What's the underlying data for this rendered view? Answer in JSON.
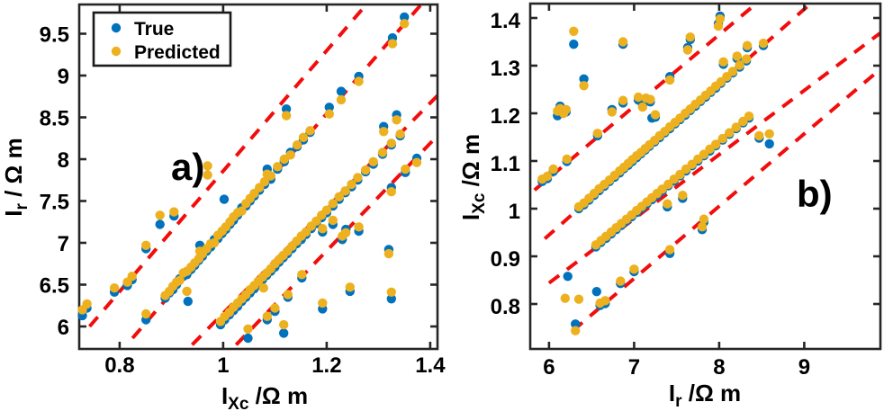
{
  "colors": {
    "true_marker": "#0072BD",
    "predicted_marker": "#EDB120",
    "ref_line": "#F20D0D",
    "axis": "#262626",
    "text": "#000000",
    "background": "#FFFFFF"
  },
  "legend": {
    "position": "top-left-inside-panel-a",
    "items": [
      {
        "label": "True",
        "color_key": "true_marker"
      },
      {
        "label": "Predicted",
        "color_key": "predicted_marker"
      }
    ]
  },
  "chart_data": [
    {
      "id": "a",
      "type": "scatter",
      "panel_label": "a)",
      "xlabel": {
        "pre": "I",
        "sub": "Xc",
        "post": " /Ω m"
      },
      "ylabel": {
        "pre": "I",
        "sub": "r",
        "post": " / Ω m"
      },
      "xlim": [
        0.722,
        1.414
      ],
      "ylim": [
        5.731,
        9.849
      ],
      "xticks": [
        0.8,
        1.0,
        1.2,
        1.4
      ],
      "xtick_labels": [
        "0.8",
        "1",
        "1.2",
        "1.4"
      ],
      "yticks": [
        6,
        6.5,
        7,
        7.5,
        8,
        8.5,
        9,
        9.5
      ],
      "ytick_labels": [
        "6",
        "6.5",
        "7",
        "7.5",
        "8",
        "8.5",
        "9",
        "9.5"
      ],
      "grid": false,
      "show_legend": true,
      "ref_lines": [
        [
          0.742,
          6.0,
          1.278,
          9.86
        ],
        [
          0.825,
          5.86,
          1.384,
          9.86
        ],
        [
          0.94,
          5.78,
          1.414,
          8.76
        ],
        [
          1.025,
          5.78,
          1.414,
          8.28
        ]
      ],
      "pairs": [
        [
          0.728,
          6.13,
          6.2
        ],
        [
          0.737,
          6.22,
          6.27
        ],
        [
          0.79,
          6.41,
          6.46
        ],
        [
          0.815,
          6.49,
          6.53
        ],
        [
          0.824,
          6.56,
          6.6
        ],
        [
          0.851,
          6.93,
          6.97
        ],
        [
          0.878,
          7.22,
          7.33
        ],
        [
          0.905,
          7.32,
          7.37
        ],
        [
          0.851,
          6.08,
          6.15
        ],
        [
          0.888,
          6.34,
          6.37
        ],
        [
          0.896,
          6.4,
          6.42
        ],
        [
          0.903,
          6.44,
          6.48
        ],
        [
          0.91,
          6.5,
          6.53
        ],
        [
          0.916,
          6.57,
          6.55
        ],
        [
          0.923,
          6.6,
          6.64
        ],
        [
          0.93,
          6.62,
          6.66
        ],
        [
          0.938,
          6.68,
          6.71
        ],
        [
          0.945,
          6.73,
          6.76
        ],
        [
          0.953,
          6.79,
          6.81
        ],
        [
          0.96,
          6.84,
          6.87
        ],
        [
          0.968,
          6.9,
          6.93
        ],
        [
          0.976,
          6.95,
          6.99
        ],
        [
          0.983,
          7.04,
          7.0
        ],
        [
          0.99,
          7.05,
          7.09
        ],
        [
          0.998,
          7.11,
          7.14
        ],
        [
          1.005,
          7.16,
          7.19
        ],
        [
          1.013,
          7.22,
          7.25
        ],
        [
          1.02,
          7.27,
          7.31
        ],
        [
          1.028,
          7.33,
          7.36
        ],
        [
          1.036,
          7.42,
          7.38
        ],
        [
          1.044,
          7.44,
          7.47
        ],
        [
          1.052,
          7.5,
          7.53
        ],
        [
          1.06,
          7.56,
          7.59
        ],
        [
          1.07,
          7.63,
          7.66
        ],
        [
          1.08,
          7.7,
          7.73
        ],
        [
          1.092,
          7.76,
          7.8
        ],
        [
          1.105,
          7.88,
          7.91
        ],
        [
          1.118,
          7.97,
          8.0
        ],
        [
          1.13,
          8.08,
          8.05
        ],
        [
          1.143,
          8.15,
          8.17
        ],
        [
          1.155,
          8.23,
          8.26
        ],
        [
          1.168,
          8.32,
          8.34
        ],
        [
          0.995,
          6.02,
          6.06
        ],
        [
          1.003,
          6.08,
          6.12
        ],
        [
          1.012,
          6.14,
          6.17
        ],
        [
          1.02,
          6.19,
          6.23
        ],
        [
          1.028,
          6.24,
          6.28
        ],
        [
          1.036,
          6.3,
          6.33
        ],
        [
          1.044,
          6.35,
          6.38
        ],
        [
          1.052,
          6.4,
          6.44
        ],
        [
          1.06,
          6.45,
          6.49
        ],
        [
          1.068,
          6.5,
          6.54
        ],
        [
          1.076,
          6.56,
          6.59
        ],
        [
          1.084,
          6.61,
          6.64
        ],
        [
          1.092,
          6.66,
          6.69
        ],
        [
          1.1,
          6.71,
          6.75
        ],
        [
          1.108,
          6.77,
          6.8
        ],
        [
          1.116,
          6.82,
          6.85
        ],
        [
          1.124,
          6.87,
          6.9
        ],
        [
          1.133,
          6.93,
          6.96
        ],
        [
          1.142,
          6.99,
          7.02
        ],
        [
          1.151,
          7.04,
          7.08
        ],
        [
          1.16,
          7.1,
          7.13
        ],
        [
          1.17,
          7.17,
          7.2
        ],
        [
          1.18,
          7.23,
          7.26
        ],
        [
          1.19,
          7.3,
          7.33
        ],
        [
          1.2,
          7.36,
          7.39
        ],
        [
          1.212,
          7.44,
          7.47
        ],
        [
          1.224,
          7.52,
          7.55
        ],
        [
          1.236,
          7.6,
          7.62
        ],
        [
          1.248,
          7.67,
          7.7
        ],
        [
          1.26,
          7.75,
          7.78
        ],
        [
          1.275,
          7.85,
          7.87
        ],
        [
          1.29,
          7.94,
          7.97
        ],
        [
          1.308,
          8.06,
          8.08
        ],
        [
          1.325,
          8.17,
          8.19
        ],
        [
          1.342,
          8.28,
          8.3
        ],
        [
          1.085,
          6.08,
          6.12
        ],
        [
          1.1,
          6.18,
          6.22
        ],
        [
          1.125,
          6.35,
          6.38
        ],
        [
          1.23,
          7.04,
          7.08
        ],
        [
          1.325,
          7.66,
          7.61
        ],
        [
          1.352,
          7.84,
          7.88
        ],
        [
          1.374,
          8.01,
          7.96
        ],
        [
          1.35,
          9.7,
          9.62
        ],
        [
          1.327,
          9.45,
          9.38
        ],
        [
          1.262,
          8.99,
          8.93
        ],
        [
          1.228,
          8.81,
          8.71
        ],
        [
          1.122,
          8.6,
          8.52
        ],
        [
          1.205,
          8.62,
          8.54
        ],
        [
          1.335,
          8.53,
          8.47
        ],
        [
          1.31,
          8.39,
          8.33
        ],
        [
          0.955,
          6.97,
          6.9
        ],
        [
          1.085,
          7.88,
          7.82
        ],
        [
          1.212,
          7.22,
          7.27
        ],
        [
          1.192,
          7.13,
          7.17
        ],
        [
          1.237,
          7.16,
          7.12
        ],
        [
          1.262,
          7.14,
          7.19
        ],
        [
          1.32,
          6.92,
          6.87
        ],
        [
          1.152,
          6.58,
          6.62
        ],
        [
          1.192,
          6.21,
          6.28
        ],
        [
          1.245,
          6.42,
          6.47
        ],
        [
          1.325,
          6.33,
          6.41
        ],
        [
          1.048,
          5.86,
          5.97
        ],
        [
          1.117,
          5.92,
          6.02
        ]
      ],
      "true_only": [
        [
          1.002,
          7.52
        ],
        [
          0.932,
          6.3
        ]
      ],
      "pred_only": [
        [
          0.97,
          7.92
        ],
        [
          0.97,
          7.81
        ],
        [
          1.078,
          6.46
        ],
        [
          0.93,
          6.42
        ]
      ]
    },
    {
      "id": "b",
      "type": "scatter",
      "panel_label": "b)",
      "xlabel": {
        "pre": "I",
        "sub": "r",
        "post": " /Ω m"
      },
      "ylabel": {
        "pre": "I",
        "sub": "Xc",
        "post": " /Ω m"
      },
      "xlim": [
        5.779,
        9.895
      ],
      "ylim": [
        0.7057,
        1.4302
      ],
      "xticks": [
        6,
        7,
        8,
        9
      ],
      "xtick_labels": [
        "6",
        "7",
        "8",
        "9"
      ],
      "yticks": [
        0.8,
        0.9,
        1.0,
        1.1,
        1.2,
        1.3,
        1.4
      ],
      "ytick_labels": [
        "0.8",
        "0.9",
        "1",
        "1.1",
        "1.2",
        "1.3",
        "1.4"
      ],
      "grid": false,
      "show_legend": false,
      "ref_lines": [
        [
          5.83,
          1.039,
          8.42,
          1.428
        ],
        [
          5.95,
          0.937,
          9.04,
          1.425
        ],
        [
          6.0,
          0.844,
          9.89,
          1.368
        ],
        [
          6.28,
          0.744,
          9.89,
          1.292
        ]
      ],
      "pairs": [
        [
          5.92,
          1.057,
          1.062
        ],
        [
          5.98,
          1.063,
          1.068
        ],
        [
          6.05,
          1.078,
          1.083
        ],
        [
          6.21,
          1.099,
          1.104
        ],
        [
          6.57,
          1.153,
          1.158
        ],
        [
          6.74,
          1.208,
          1.203
        ],
        [
          6.87,
          1.222,
          1.227
        ],
        [
          7.05,
          1.228,
          1.234
        ],
        [
          7.1,
          1.218,
          1.213
        ],
        [
          7.14,
          1.228,
          1.232
        ],
        [
          7.19,
          1.224,
          1.229
        ],
        [
          7.42,
          1.277,
          1.27
        ],
        [
          7.99,
          1.388,
          1.383
        ],
        [
          8.01,
          1.404,
          1.398
        ],
        [
          6.35,
          1.0,
          1.004
        ],
        [
          6.41,
          1.008,
          1.012
        ],
        [
          6.47,
          1.018,
          1.022
        ],
        [
          6.53,
          1.028,
          1.032
        ],
        [
          6.59,
          1.038,
          1.042
        ],
        [
          6.65,
          1.047,
          1.051
        ],
        [
          6.71,
          1.057,
          1.06
        ],
        [
          6.77,
          1.066,
          1.07
        ],
        [
          6.83,
          1.075,
          1.079
        ],
        [
          6.88,
          1.084,
          1.087
        ],
        [
          6.93,
          1.091,
          1.095
        ],
        [
          6.98,
          1.099,
          1.103
        ],
        [
          7.03,
          1.107,
          1.111
        ],
        [
          7.08,
          1.115,
          1.118
        ],
        [
          7.13,
          1.123,
          1.126
        ],
        [
          7.18,
          1.131,
          1.134
        ],
        [
          7.24,
          1.14,
          1.143
        ],
        [
          7.3,
          1.149,
          1.153
        ],
        [
          7.36,
          1.159,
          1.162
        ],
        [
          7.42,
          1.168,
          1.172
        ],
        [
          7.48,
          1.178,
          1.181
        ],
        [
          7.54,
          1.187,
          1.19
        ],
        [
          7.6,
          1.196,
          1.2
        ],
        [
          7.66,
          1.206,
          1.209
        ],
        [
          7.72,
          1.215,
          1.219
        ],
        [
          7.78,
          1.225,
          1.228
        ],
        [
          7.84,
          1.234,
          1.238
        ],
        [
          7.9,
          1.244,
          1.247
        ],
        [
          7.96,
          1.253,
          1.257
        ],
        [
          8.02,
          1.263,
          1.266
        ],
        [
          8.09,
          1.274,
          1.277
        ],
        [
          8.16,
          1.285,
          1.288
        ],
        [
          8.24,
          1.297,
          1.301
        ],
        [
          8.32,
          1.31,
          1.314
        ],
        [
          6.55,
          0.92,
          0.924
        ],
        [
          6.61,
          0.929,
          0.933
        ],
        [
          6.67,
          0.938,
          0.942
        ],
        [
          6.73,
          0.947,
          0.951
        ],
        [
          6.79,
          0.956,
          0.96
        ],
        [
          6.85,
          0.965,
          0.969
        ],
        [
          6.91,
          0.974,
          0.978
        ],
        [
          6.97,
          0.983,
          0.987
        ],
        [
          7.03,
          0.992,
          0.996
        ],
        [
          7.09,
          1.001,
          1.005
        ],
        [
          7.15,
          1.01,
          1.014
        ],
        [
          7.21,
          1.019,
          1.023
        ],
        [
          7.27,
          1.028,
          1.032
        ],
        [
          7.33,
          1.037,
          1.041
        ],
        [
          7.4,
          1.048,
          1.051
        ],
        [
          7.47,
          1.058,
          1.062
        ],
        [
          7.54,
          1.069,
          1.072
        ],
        [
          7.61,
          1.079,
          1.083
        ],
        [
          7.68,
          1.09,
          1.093
        ],
        [
          7.75,
          1.1,
          1.104
        ],
        [
          7.82,
          1.111,
          1.114
        ],
        [
          7.89,
          1.121,
          1.125
        ],
        [
          7.96,
          1.132,
          1.135
        ],
        [
          8.04,
          1.144,
          1.147
        ],
        [
          8.12,
          1.156,
          1.159
        ],
        [
          8.2,
          1.168,
          1.171
        ],
        [
          8.28,
          1.18,
          1.183
        ],
        [
          8.35,
          1.19,
          1.194
        ],
        [
          6.31,
          0.758,
          0.744
        ],
        [
          6.6,
          0.797,
          0.802
        ],
        [
          6.66,
          0.801,
          0.807
        ],
        [
          7.0,
          0.868,
          0.873
        ],
        [
          7.42,
          0.906,
          0.914
        ],
        [
          7.8,
          0.956,
          0.962
        ],
        [
          7.82,
          0.972,
          0.978
        ],
        [
          6.29,
          1.345,
          1.372
        ],
        [
          6.87,
          1.345,
          1.35
        ],
        [
          6.41,
          1.272,
          1.258
        ],
        [
          6.13,
          1.215,
          1.21
        ],
        [
          6.17,
          1.205,
          1.2
        ],
        [
          6.1,
          1.195,
          1.205
        ],
        [
          6.2,
          1.203,
          1.208
        ],
        [
          7.63,
          1.338,
          1.333
        ],
        [
          7.66,
          1.355,
          1.36
        ],
        [
          8.05,
          1.303,
          1.308
        ],
        [
          8.21,
          1.315,
          1.32
        ],
        [
          8.33,
          1.338,
          1.342
        ],
        [
          8.52,
          1.342,
          1.347
        ],
        [
          8.47,
          1.148,
          1.153
        ],
        [
          8.59,
          1.136,
          1.157
        ],
        [
          6.84,
          0.843,
          0.848
        ],
        [
          7.57,
          1.022,
          1.028
        ],
        [
          7.39,
          1.004,
          1.01
        ],
        [
          7.25,
          1.192,
          1.197
        ]
      ],
      "true_only": [
        [
          6.22,
          0.858
        ],
        [
          6.56,
          0.826
        ],
        [
          7.21,
          1.19
        ]
      ],
      "pred_only": [
        [
          6.19,
          0.812
        ],
        [
          6.35,
          0.81
        ]
      ]
    }
  ]
}
